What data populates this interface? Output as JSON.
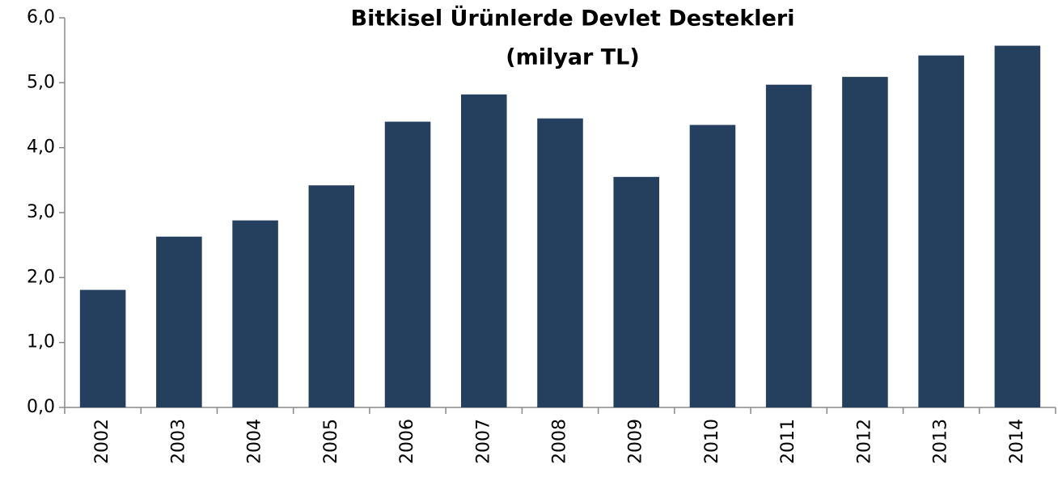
{
  "chart_data": {
    "type": "bar",
    "title": "Bitkisel Ürünlerde Devlet Destekleri",
    "subtitle": "(milyar TL)",
    "categories": [
      "2002",
      "2003",
      "2004",
      "2005",
      "2006",
      "2007",
      "2008",
      "2009",
      "2010",
      "2011",
      "2012",
      "2013",
      "2014"
    ],
    "values": [
      1.81,
      2.63,
      2.88,
      3.42,
      4.4,
      4.82,
      4.45,
      3.55,
      4.35,
      4.97,
      5.09,
      5.42,
      5.57
    ],
    "color": "#253f5f",
    "ylim": [
      0,
      6
    ],
    "yticks": [
      {
        "value": 0,
        "label": "0,0"
      },
      {
        "value": 1,
        "label": "1,0"
      },
      {
        "value": 2,
        "label": "2,0"
      },
      {
        "value": 3,
        "label": "3,0"
      },
      {
        "value": 4,
        "label": "4,0"
      },
      {
        "value": 5,
        "label": "5,0"
      },
      {
        "value": 6,
        "label": "6,0"
      }
    ],
    "grid": false
  }
}
